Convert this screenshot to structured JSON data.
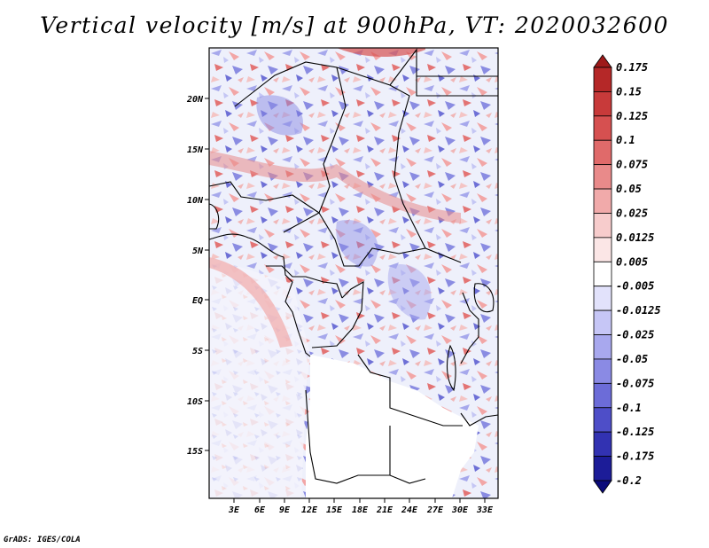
{
  "title": "Vertical velocity [m/s] at 900hPa, VT: 2020032600",
  "credit": "GrADS: IGES/COLA",
  "map": {
    "lat_labels": [
      "20N",
      "15N",
      "10N",
      "5N",
      "EQ",
      "5S",
      "10S",
      "15S"
    ],
    "lon_labels": [
      "3E",
      "6E",
      "9E",
      "12E",
      "15E",
      "18E",
      "21E",
      "24E",
      "27E",
      "30E",
      "33E"
    ]
  },
  "colorbar": {
    "labels": [
      "0.175",
      "0.15",
      "0.125",
      "0.1",
      "0.075",
      "0.05",
      "0.025",
      "0.0125",
      "0.005",
      "-0.005",
      "-0.0125",
      "-0.025",
      "-0.05",
      "-0.075",
      "-0.1",
      "-0.125",
      "-0.175",
      "-0.2"
    ],
    "colors": [
      "#9e1a1a",
      "#b52828",
      "#c83a3a",
      "#d65050",
      "#e06a6a",
      "#e98a8a",
      "#f1aaaa",
      "#f7cccc",
      "#fbe6e6",
      "#ffffff",
      "#e2e2fb",
      "#c6c6f6",
      "#a8a8ee",
      "#8a8ae4",
      "#6c6cd8",
      "#4e4ec8",
      "#3232b2",
      "#1c1c98",
      "#0a0a7a"
    ]
  }
}
